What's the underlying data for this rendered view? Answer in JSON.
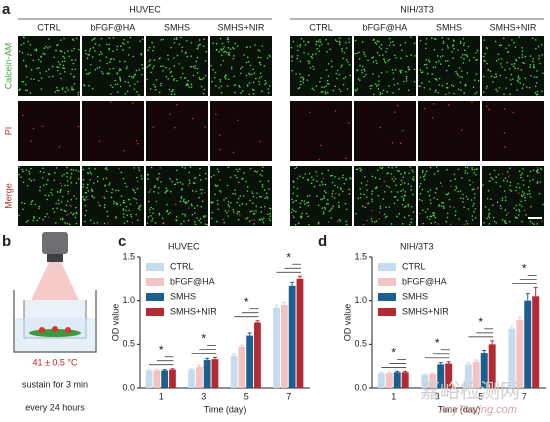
{
  "panel_labels": [
    "a",
    "b",
    "c",
    "d"
  ],
  "microscopy": {
    "groups": [
      "HUVEC",
      "NIH/3T3"
    ],
    "columns": [
      "CTRL",
      "bFGF@HA",
      "SMHS",
      "SMHS+NIR"
    ],
    "rows": [
      "Calcein-AM",
      "PI",
      "Merge"
    ]
  },
  "schematic": {
    "temperature": "41 ± 0.5 °C",
    "line1": "sustain for 3 min",
    "line2": "every 24 hours"
  },
  "watermark": [
    "嘉峪检测网",
    "AnyTesting.com"
  ],
  "chart_data": [
    {
      "type": "bar",
      "title": "HUVEC",
      "x_label": "Time (day)",
      "y_label": "OD value",
      "categories": [
        "1",
        "3",
        "5",
        "7"
      ],
      "ylim": [
        0,
        1.5
      ],
      "yticks": [
        {
          "value": 0,
          "label": "0.0"
        },
        {
          "value": 0.5,
          "label": "0.5"
        },
        {
          "value": 1,
          "label": "1.0"
        },
        {
          "value": 1.5,
          "label": "1.5"
        }
      ],
      "series": [
        {
          "name": "CTRL",
          "color": "#c6dcee",
          "values": [
            0.2,
            0.21,
            0.37,
            0.92
          ],
          "errors": [
            0.01,
            0.01,
            0.02,
            0.03
          ]
        },
        {
          "name": "bFGF@HA",
          "color": "#f3c3c3",
          "values": [
            0.2,
            0.24,
            0.47,
            0.95
          ],
          "errors": [
            0.01,
            0.02,
            0.02,
            0.03
          ]
        },
        {
          "name": "SMHS",
          "color": "#1d5f8c",
          "values": [
            0.2,
            0.32,
            0.6,
            1.17
          ],
          "errors": [
            0.01,
            0.02,
            0.03,
            0.04
          ]
        },
        {
          "name": "SMHS+NIR",
          "color": "#b32a35",
          "values": [
            0.21,
            0.33,
            0.75,
            1.25
          ],
          "errors": [
            0.01,
            0.02,
            0.02,
            0.03
          ]
        }
      ],
      "annotations": [
        "*",
        "*",
        "*",
        "*"
      ]
    },
    {
      "type": "bar",
      "title": "NIH/3T3",
      "x_label": "Time (day)",
      "y_label": "OD value",
      "categories": [
        "1",
        "3",
        "5",
        "7"
      ],
      "ylim": [
        0,
        1.5
      ],
      "yticks": [
        {
          "value": 0,
          "label": "0.0"
        },
        {
          "value": 0.5,
          "label": "0.5"
        },
        {
          "value": 1,
          "label": "1.0"
        },
        {
          "value": 1.5,
          "label": "1.5"
        }
      ],
      "series": [
        {
          "name": "CTRL",
          "color": "#c6dcee",
          "values": [
            0.17,
            0.15,
            0.27,
            0.68
          ],
          "errors": [
            0.01,
            0.01,
            0.02,
            0.03
          ]
        },
        {
          "name": "bFGF@HA",
          "color": "#f3c3c3",
          "values": [
            0.17,
            0.16,
            0.3,
            0.78
          ],
          "errors": [
            0.01,
            0.01,
            0.02,
            0.03
          ]
        },
        {
          "name": "SMHS",
          "color": "#1d5f8c",
          "values": [
            0.18,
            0.27,
            0.4,
            1.0
          ],
          "errors": [
            0.01,
            0.02,
            0.03,
            0.08
          ]
        },
        {
          "name": "SMHS+NIR",
          "color": "#b32a35",
          "values": [
            0.18,
            0.28,
            0.5,
            1.05
          ],
          "errors": [
            0.01,
            0.02,
            0.04,
            0.1
          ]
        }
      ],
      "annotations": [
        "*",
        "*",
        "*",
        "*"
      ]
    }
  ]
}
